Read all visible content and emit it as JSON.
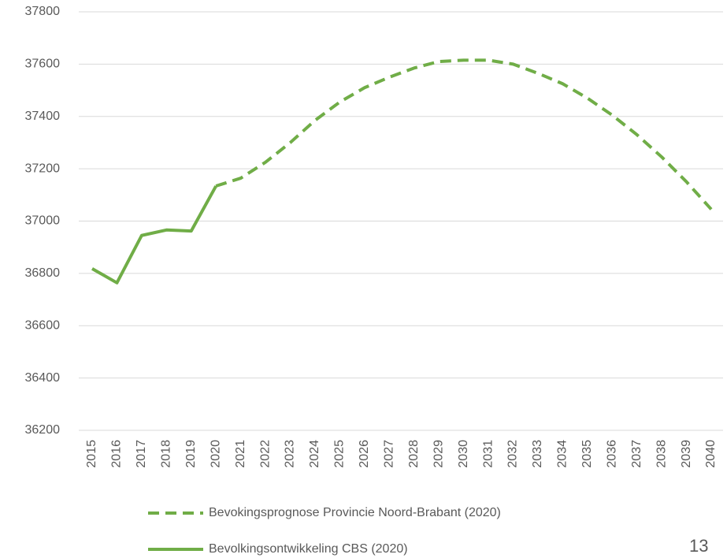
{
  "chart_data": {
    "type": "line",
    "categories": [
      "2015",
      "2016",
      "2017",
      "2018",
      "2019",
      "2020",
      "2021",
      "2022",
      "2023",
      "2024",
      "2025",
      "2026",
      "2027",
      "2028",
      "2029",
      "2030",
      "2031",
      "2032",
      "2033",
      "2034",
      "2035",
      "2036",
      "2037",
      "2038",
      "2039",
      "2040"
    ],
    "series": [
      {
        "name": "Bevokingsprognose Provincie Noord-Brabant (2020)",
        "color": "#70ad47",
        "dashed": true,
        "values": [
          null,
          null,
          null,
          null,
          null,
          37134,
          37164,
          37225,
          37300,
          37385,
          37455,
          37510,
          37550,
          37585,
          37610,
          37615,
          37615,
          37600,
          37565,
          37525,
          37470,
          37405,
          37330,
          37245,
          37150,
          37045
        ]
      },
      {
        "name": "Bevolkingsontwikkeling CBS (2020)",
        "color": "#70ad47",
        "dashed": false,
        "values": [
          36818,
          36764,
          36945,
          36966,
          36962,
          37134,
          null,
          null,
          null,
          null,
          null,
          null,
          null,
          null,
          null,
          null,
          null,
          null,
          null,
          null,
          null,
          null,
          null,
          null,
          null,
          null
        ]
      }
    ],
    "ylim": [
      36200,
      37800
    ],
    "yticks": [
      36200,
      36400,
      36600,
      36800,
      37000,
      37200,
      37400,
      37600,
      37800
    ],
    "grid": true
  },
  "page_number": "13"
}
